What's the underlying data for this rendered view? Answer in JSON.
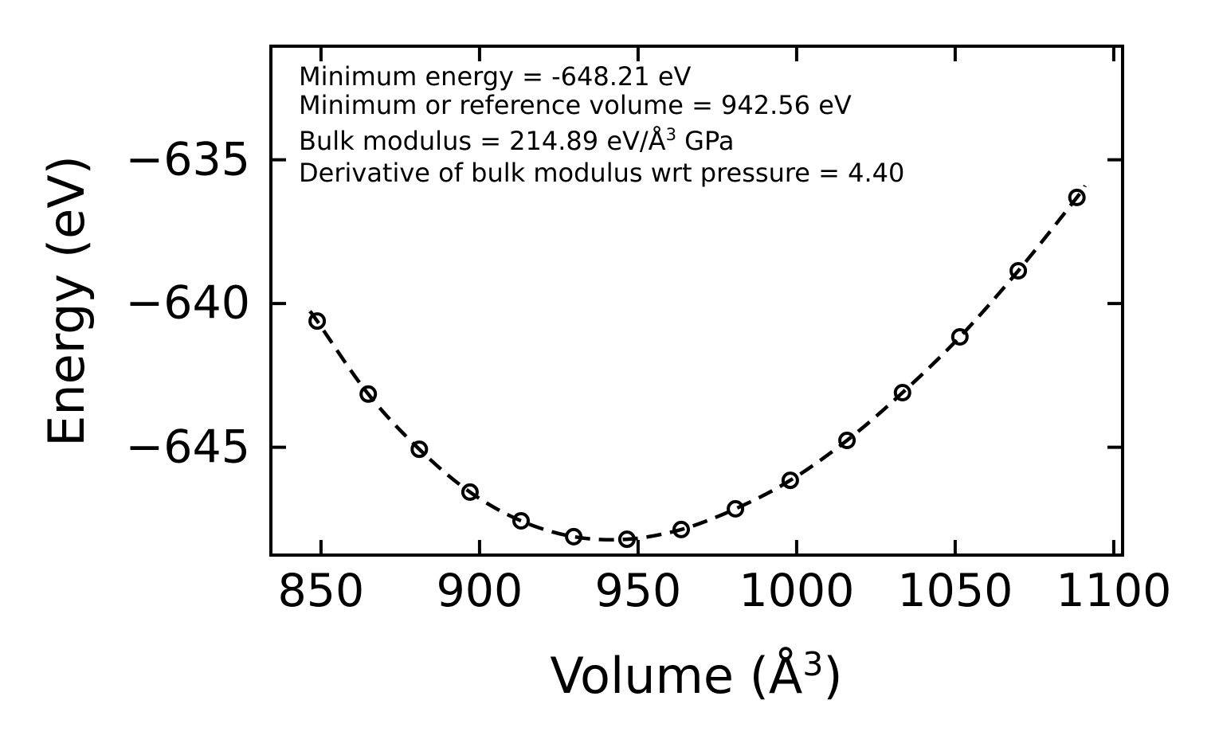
{
  "figure": {
    "background_color": "#ffffff",
    "foreground_color": "#000000"
  },
  "annotation": {
    "line1": "Minimum energy = -648.21 eV",
    "line2": "Minimum or reference volume = 942.56 eV",
    "line3_pre": "Bulk modulus = 214.89 eV/Å",
    "line3_sup": "3",
    "line3_post": " GPa",
    "line4": "Derivative of bulk modulus wrt pressure = 4.40"
  },
  "chart_data": {
    "type": "scatter",
    "title": "",
    "xlabel_pre": "Volume (Å",
    "xlabel_sup": "3",
    "xlabel_post": ")",
    "ylabel": "Energy (eV)",
    "xlim": [
      834.2,
      1102.8
    ],
    "ylim": [
      -648.75,
      -631.05
    ],
    "x_ticks": [
      850,
      900,
      950,
      1000,
      1050,
      1100
    ],
    "x_tick_labels": [
      "850",
      "900",
      "950",
      "1000",
      "1050",
      "1100"
    ],
    "y_ticks": [
      -635,
      -640,
      -645
    ],
    "y_tick_labels": [
      "−635",
      "−640",
      "−645"
    ],
    "grid": false,
    "legend": "none",
    "marker": "open-circle",
    "line_style": "dashed",
    "color": "#000000",
    "points": [
      [
        848.8,
        -640.61
      ],
      [
        864.9,
        -643.15
      ],
      [
        881.0,
        -645.07
      ],
      [
        897.0,
        -646.56
      ],
      [
        913.1,
        -647.56
      ],
      [
        929.7,
        -648.11
      ],
      [
        946.5,
        -648.2
      ],
      [
        963.6,
        -647.86
      ],
      [
        980.7,
        -647.14
      ],
      [
        998.0,
        -646.15
      ],
      [
        1015.9,
        -644.76
      ],
      [
        1033.4,
        -643.1
      ],
      [
        1051.5,
        -641.16
      ],
      [
        1069.9,
        -638.86
      ],
      [
        1088.4,
        -636.31
      ]
    ],
    "curve_extension_start": [
      846.5,
      -640.27
    ],
    "curve_extension_end": [
      1091.0,
      -635.9
    ],
    "fit_parameters": {
      "minimum_energy_eV": -648.21,
      "reference_volume": 942.56,
      "bulk_modulus": 214.89,
      "bulk_modulus_pressure_derivative": 4.4
    }
  }
}
